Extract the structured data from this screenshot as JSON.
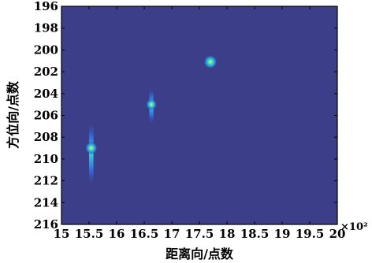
{
  "chart_data": {
    "type": "heatmap",
    "title": "",
    "xlabel": "距离向/点数",
    "ylabel": "方位向/点数",
    "x_multiplier_label": "×10²",
    "xlim": [
      15,
      20
    ],
    "ylim": [
      216,
      196
    ],
    "y_direction": "reversed",
    "xticks": [
      15,
      15.5,
      16,
      16.5,
      17,
      17.5,
      18,
      18.5,
      19,
      19.5,
      20
    ],
    "xtick_labels": [
      "15",
      "15.5",
      "16",
      "16.5",
      "17",
      "17.5",
      "18",
      "18.5",
      "19",
      "19.5",
      "20"
    ],
    "yticks": [
      196,
      198,
      200,
      202,
      204,
      206,
      208,
      210,
      212,
      214,
      216
    ],
    "ytick_labels": [
      "196",
      "198",
      "200",
      "202",
      "204",
      "206",
      "208",
      "210",
      "212",
      "214",
      "216"
    ],
    "grid": false,
    "legend": "none",
    "colormap": "parula",
    "background_color": "#3d3e8a",
    "points": [
      {
        "x": 15.54,
        "y": 209.0,
        "y_extent": [
          206.5,
          212.5
        ],
        "intensity": 0.8
      },
      {
        "x": 16.63,
        "y": 205.0,
        "y_extent": [
          203.5,
          206.8
        ],
        "intensity": 0.6
      },
      {
        "x": 17.7,
        "y": 201.1,
        "y_extent": [
          200.6,
          201.6
        ],
        "intensity": 0.95
      }
    ]
  }
}
